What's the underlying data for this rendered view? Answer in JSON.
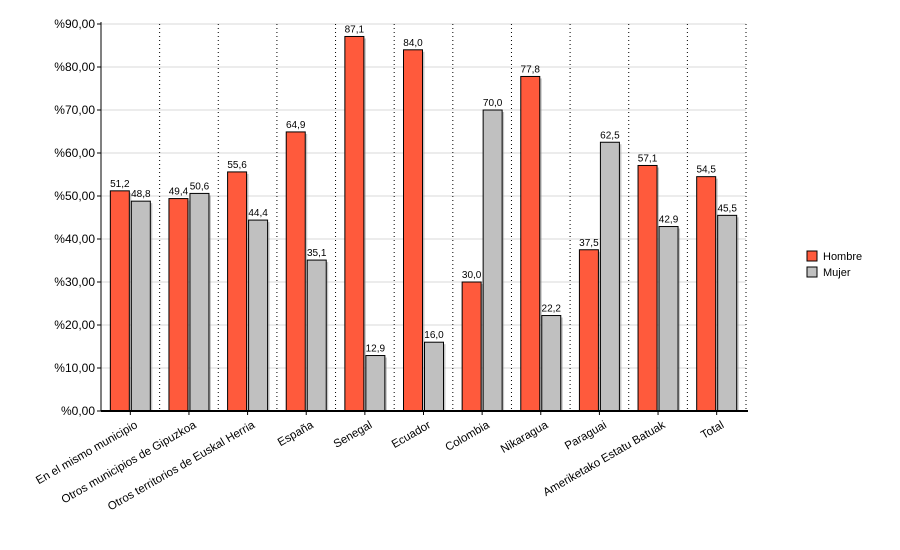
{
  "chart_data": {
    "type": "bar",
    "categories": [
      "En el mismo municipio",
      "Otros municipios de Gipuzkoa",
      "Otros territorios de Euskal Herria",
      "España",
      "Senegal",
      "Ecuador",
      "Colombia",
      "Nikaragua",
      "Paraguai",
      "Ameriketako Estatu Batuak",
      "Total"
    ],
    "series": [
      {
        "name": "Hombre",
        "color": "#ff5a3c",
        "values": [
          51.2,
          49.4,
          55.6,
          64.9,
          87.1,
          84.0,
          30.0,
          77.8,
          37.5,
          57.1,
          54.5
        ],
        "labels": [
          "51,2",
          "49,4",
          "55,6",
          "64,9",
          "87,1",
          "84,0",
          "30,0",
          "77,8",
          "37,5",
          "57,1",
          "54,5"
        ]
      },
      {
        "name": "Mujer",
        "color": "#c0c0c0",
        "values": [
          48.8,
          50.6,
          44.4,
          35.1,
          12.9,
          16.0,
          70.0,
          22.2,
          62.5,
          42.9,
          45.5
        ],
        "labels": [
          "48,8",
          "50,6",
          "44,4",
          "35,1",
          "12,9",
          "16,0",
          "70,0",
          "22,2",
          "62,5",
          "42,9",
          "45,5"
        ]
      }
    ],
    "y_ticks": [
      {
        "value": 0,
        "label": "%0,00"
      },
      {
        "value": 10,
        "label": "%10,00"
      },
      {
        "value": 20,
        "label": "%20,00"
      },
      {
        "value": 30,
        "label": "%30,00"
      },
      {
        "value": 40,
        "label": "%40,00"
      },
      {
        "value": 50,
        "label": "%50,00"
      },
      {
        "value": 60,
        "label": "%60,00"
      },
      {
        "value": 70,
        "label": "%70,00"
      },
      {
        "value": 80,
        "label": "%80,00"
      },
      {
        "value": 90,
        "label": "%90,00"
      }
    ],
    "ylim": [
      0,
      90
    ],
    "grid": true,
    "legend_position": "right",
    "title": "",
    "xlabel": "",
    "ylabel": ""
  }
}
